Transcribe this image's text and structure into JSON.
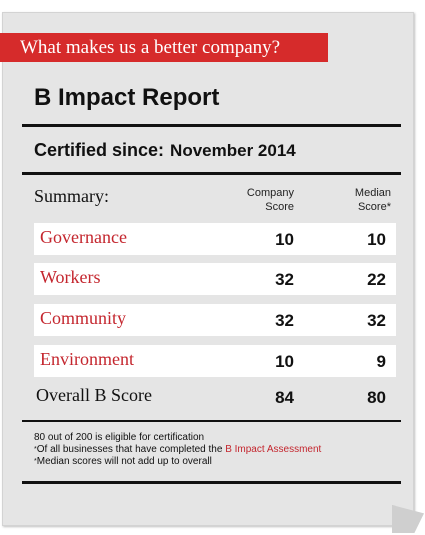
{
  "banner": {
    "text": "What makes us a better company?"
  },
  "report": {
    "title": "B Impact Report",
    "certified_label": "Certified since:",
    "certified_value": "November 2014"
  },
  "table": {
    "summary_label": "Summary:",
    "col_company_line1": "Company",
    "col_company_line2": "Score",
    "col_median_line1": "Median",
    "col_median_line2": "Score*",
    "rows": [
      {
        "label": "Governance",
        "company": "10",
        "median": "10"
      },
      {
        "label": "Workers",
        "company": "32",
        "median": "22"
      },
      {
        "label": "Community",
        "company": "32",
        "median": "32"
      },
      {
        "label": "Environment",
        "company": "10",
        "median": "9"
      }
    ],
    "overall": {
      "label": "Overall B Score",
      "company": "84",
      "median": "80"
    }
  },
  "notes": {
    "line1": "80 out of 200 is eligible for certification",
    "line2_pre": "Of all businesses that have completed the ",
    "line2_link": "B Impact Assessment",
    "line3": "Median scores will not add up to overall",
    "asterisk": "*"
  },
  "colors": {
    "accent": "#d62b2b",
    "link": "#c4262e",
    "card": "#e5e5e5"
  }
}
